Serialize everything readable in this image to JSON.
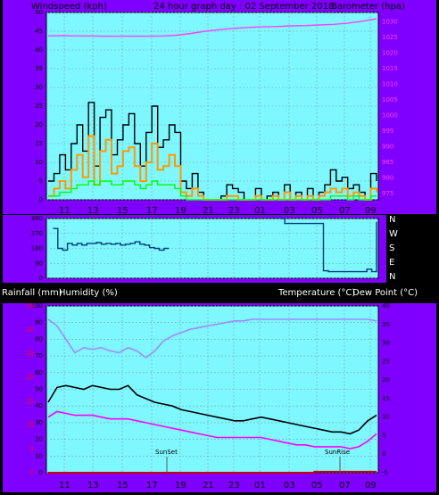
{
  "header": {
    "wind_label": "Windspeed (kph)",
    "title": "24 hour graph day : 02 September 2018",
    "baro_label": "Barometer (hpa)"
  },
  "mid_header": {
    "rain_label": "Rainfall (mm)",
    "humidity_label": "Humidity (%)",
    "temp_label": "Temperature (°C)",
    "dew_label": "Dew Point (°C)"
  },
  "compass": [
    "N",
    "W",
    "S",
    "E",
    "N"
  ],
  "colors": {
    "frame": "#8000ff",
    "plot": "#7ff7ff",
    "baro": "#ff40ff",
    "gust": "#000000",
    "wind": "#ff9900",
    "avg": "#00ff00",
    "dir": "#003e7a",
    "humidity": "#a08cff",
    "temp": "#000000",
    "dew": "#ff00ff",
    "rain": "#cc0000"
  },
  "chart_data": [
    {
      "type": "line",
      "name": "wind-and-barometer",
      "x_ticks": [
        "11",
        "13",
        "15",
        "17",
        "19",
        "21",
        "23",
        "01",
        "03",
        "05",
        "07",
        "09"
      ],
      "y_left": {
        "label": "Windspeed (kph)",
        "ticks": [
          0,
          5,
          10,
          15,
          20,
          25,
          30,
          35,
          40,
          45,
          50
        ],
        "range": [
          0,
          50
        ]
      },
      "y_right": {
        "label": "Barometer (hpa)",
        "ticks": [
          975,
          980,
          985,
          990,
          995,
          1000,
          1005,
          1010,
          1015,
          1020,
          1025,
          1030
        ],
        "range": [
          973,
          1033
        ]
      },
      "series": [
        {
          "name": "Windspeed gust",
          "values": [
            5,
            7,
            12,
            8,
            15,
            20,
            13,
            26,
            9,
            22,
            24,
            12,
            16,
            20,
            23,
            15,
            9,
            18,
            25,
            14,
            16,
            20,
            18,
            5,
            3,
            7,
            2,
            0,
            0,
            0,
            1,
            4,
            3,
            2,
            0,
            0,
            3,
            0,
            1,
            2,
            0,
            4,
            0,
            2,
            0,
            3,
            0,
            2,
            4,
            8,
            5,
            6,
            3,
            4,
            2,
            0,
            7,
            5
          ]
        },
        {
          "name": "Windspeed",
          "values": [
            1,
            3,
            5,
            3,
            8,
            12,
            6,
            17,
            4,
            13,
            16,
            7,
            9,
            13,
            14,
            9,
            5,
            10,
            15,
            8,
            9,
            12,
            9,
            2,
            1,
            3,
            1,
            0,
            0,
            0,
            0,
            1,
            1,
            0,
            0,
            0,
            1,
            0,
            0,
            1,
            0,
            2,
            0,
            1,
            0,
            1,
            0,
            1,
            2,
            3,
            2,
            3,
            1,
            2,
            1,
            0,
            3,
            2
          ]
        },
        {
          "name": "Average windspeed",
          "values": [
            1,
            1,
            2,
            2,
            3,
            4,
            4,
            5,
            4,
            5,
            5,
            4,
            4,
            5,
            5,
            4,
            3,
            4,
            5,
            4,
            4,
            4,
            3,
            1,
            0,
            0,
            0,
            0,
            0,
            0,
            0,
            0,
            0,
            0,
            0,
            0,
            0,
            0,
            0,
            0,
            0,
            0,
            0,
            0,
            0,
            0,
            0,
            0,
            0,
            1,
            1,
            1,
            0,
            1,
            0,
            0,
            1,
            1
          ]
        },
        {
          "name": "Barometer",
          "axis": "right",
          "values": [
            1025.5,
            1025.6,
            1025.5,
            1025.5,
            1025.4,
            1025.4,
            1025.4,
            1025.4,
            1025.5,
            1025.7,
            1026.3,
            1027.0,
            1027.5,
            1027.9,
            1028.2,
            1028.4,
            1028.5,
            1028.7,
            1028.8,
            1029.0,
            1029.2,
            1029.6,
            1030.2,
            1031.0
          ]
        }
      ]
    },
    {
      "type": "line",
      "name": "wind-direction",
      "x_ticks": [
        "11",
        "13",
        "15",
        "17",
        "19",
        "21",
        "23",
        "01",
        "03",
        "05",
        "07",
        "09"
      ],
      "y_left": {
        "ticks": [
          0,
          90,
          180,
          270,
          360
        ],
        "range": [
          0,
          360
        ]
      },
      "series": [
        {
          "name": "Wind direction",
          "values": [
            null,
            300,
            180,
            170,
            210,
            200,
            210,
            200,
            210,
            210,
            215,
            205,
            210,
            205,
            210,
            200,
            205,
            210,
            220,
            205,
            200,
            185,
            180,
            170,
            180,
            180,
            null,
            null,
            null,
            null,
            null,
            null,
            null,
            null,
            null,
            null,
            null,
            null,
            null,
            null,
            null,
            null,
            null,
            null,
            null,
            null,
            null,
            null,
            360,
            330,
            330,
            330,
            330,
            330,
            330,
            330,
            330,
            45,
            40,
            40,
            40,
            40,
            40,
            40,
            40,
            40,
            55,
            40,
            340
          ]
        }
      ]
    },
    {
      "type": "line",
      "name": "temperature-humidity-rain",
      "x_ticks": [
        "11",
        "13",
        "15",
        "17",
        "19",
        "21",
        "23",
        "01",
        "03",
        "05",
        "07",
        "09"
      ],
      "y_left": {
        "label": "Humidity (%)",
        "ticks": [
          0,
          10,
          20,
          30,
          40,
          50,
          60,
          70,
          80,
          90,
          100
        ],
        "range": [
          0,
          100
        ]
      },
      "y_rain": {
        "label": "Rainfall (mm)",
        "ticks": [
          0,
          5,
          10,
          15,
          20,
          25,
          30,
          35
        ],
        "range": [
          0,
          35
        ]
      },
      "y_right": {
        "label": "Temperature (°C)",
        "ticks": [
          -5,
          0,
          5,
          10,
          15,
          20,
          25,
          30,
          35,
          40
        ],
        "range": [
          -5,
          40
        ]
      },
      "annotations": [
        "SunSet",
        "SunRise"
      ],
      "series": [
        {
          "name": "Humidity",
          "values": [
            92,
            88,
            80,
            72,
            75,
            74,
            75,
            73,
            72,
            75,
            73,
            69,
            73,
            79,
            82,
            84,
            86,
            87,
            88,
            89,
            90,
            91,
            91,
            92,
            92,
            92,
            92,
            92,
            92,
            92,
            92,
            92,
            92,
            92,
            92,
            92,
            92,
            91
          ]
        },
        {
          "name": "Temperature",
          "values": [
            14,
            18,
            18.5,
            18,
            17.5,
            18.5,
            18,
            17.5,
            17.5,
            18.5,
            16,
            15,
            14,
            13.5,
            13,
            12,
            11.5,
            11,
            10.5,
            10,
            9.5,
            9,
            9,
            9.5,
            10,
            9.5,
            9,
            8.5,
            8,
            7.5,
            7,
            6.5,
            6,
            6,
            5.5,
            6.5,
            9,
            10.5
          ]
        },
        {
          "name": "Dew Point",
          "values": [
            10,
            11.5,
            11,
            10.5,
            10.5,
            10.5,
            10,
            9.5,
            9.5,
            9.5,
            9,
            8.5,
            8,
            7.5,
            7,
            6.5,
            6,
            5.5,
            5,
            4.5,
            4.5,
            4.5,
            4.5,
            4.5,
            4.5,
            4,
            3.5,
            3,
            2.5,
            2.5,
            2,
            2,
            2,
            2,
            1.5,
            2,
            3.5,
            5.5
          ]
        },
        {
          "name": "Rainfall",
          "axis": "rain",
          "values": [
            0,
            0,
            0,
            0,
            0,
            0,
            0,
            0,
            0,
            0,
            0,
            0,
            0,
            0,
            0,
            0,
            0,
            0,
            0,
            0,
            0,
            0,
            0,
            0,
            0,
            0,
            0,
            0,
            0,
            0,
            0.2,
            0.2,
            0.2,
            0.2,
            0.2,
            0.2,
            0.2,
            0.2
          ]
        }
      ]
    }
  ]
}
